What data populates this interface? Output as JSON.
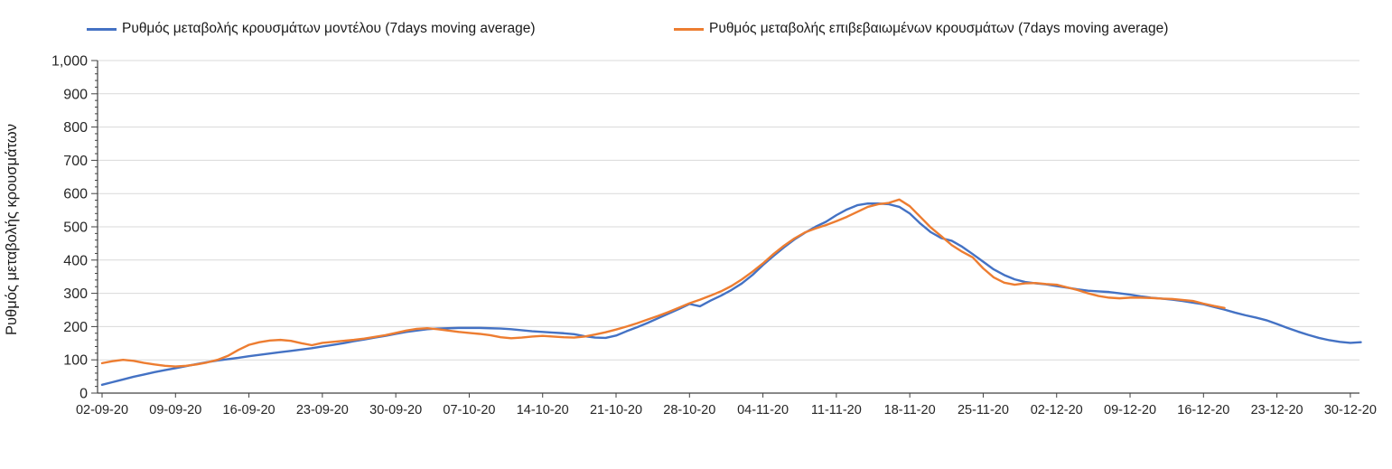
{
  "legend": {
    "items": [
      {
        "label": "Ρυθμός μεταβολής κρουσμάτων μοντέλου (7days moving average)",
        "color": "#4472C4"
      },
      {
        "label": "Ρυθμός μεταβολής επιβεβαιωμένων κρουσμάτων (7days moving average)",
        "color": "#ED7D31"
      }
    ]
  },
  "chart_data": {
    "type": "line",
    "title": "",
    "xlabel": "",
    "ylabel": "Ρυθμός μεταβολής κρουσμάτων",
    "ylim": [
      0,
      1000
    ],
    "y_tick_step": 100,
    "y_minor_tick_step": 20,
    "y_tick_labels": [
      "0",
      "100",
      "200",
      "300",
      "400",
      "500",
      "600",
      "700",
      "800",
      "900",
      "1,000"
    ],
    "grid": "horizontal",
    "gridline_color": "#D9D9D9",
    "axis_color": "#404040",
    "tick_label_color": "#262626",
    "x_tick_labels": [
      "02-09-20",
      "09-09-20",
      "16-09-20",
      "23-09-20",
      "30-09-20",
      "07-10-20",
      "14-10-20",
      "21-10-20",
      "28-10-20",
      "04-11-20",
      "11-11-20",
      "18-11-20",
      "25-11-20",
      "02-12-20",
      "09-12-20",
      "16-12-20",
      "23-12-20",
      "30-12-20"
    ],
    "x_tick_interval_days": 7,
    "legend_position": "top",
    "series": [
      {
        "name": "Ρυθμός μεταβολής κρουσμάτων μοντέλου (7days moving average)",
        "color": "#4472C4",
        "start_day": 0,
        "values": [
          25,
          33,
          41,
          49,
          56,
          63,
          69,
          75,
          81,
          87,
          93,
          98,
          102,
          106,
          111,
          115,
          119,
          123,
          127,
          131,
          135,
          140,
          145,
          150,
          156,
          161,
          167,
          172,
          178,
          184,
          188,
          192,
          194,
          195,
          196,
          196,
          196,
          195,
          194,
          192,
          189,
          186,
          184,
          182,
          180,
          177,
          171,
          167,
          166,
          173,
          186,
          198,
          211,
          225,
          239,
          253,
          268,
          261,
          278,
          293,
          310,
          330,
          355,
          385,
          412,
          438,
          462,
          482,
          500,
          515,
          535,
          552,
          565,
          570,
          570,
          568,
          560,
          540,
          510,
          484,
          466,
          458,
          440,
          418,
          395,
          372,
          355,
          342,
          334,
          330,
          327,
          322,
          317,
          312,
          308,
          306,
          304,
          300,
          296,
          291,
          287,
          284,
          281,
          277,
          272,
          267,
          259,
          251,
          242,
          234,
          227,
          219,
          208,
          196,
          185,
          175,
          166,
          159,
          154,
          151,
          153
        ]
      },
      {
        "name": "Ρυθμός μεταβολής επιβεβαιωμένων κρουσμάτων (7days moving average)",
        "color": "#ED7D31",
        "start_day": 0,
        "values": [
          90,
          96,
          100,
          97,
          91,
          86,
          82,
          80,
          82,
          86,
          92,
          100,
          112,
          130,
          145,
          153,
          158,
          160,
          157,
          150,
          144,
          151,
          154,
          157,
          160,
          164,
          169,
          174,
          181,
          188,
          193,
          195,
          192,
          188,
          184,
          181,
          178,
          174,
          168,
          165,
          167,
          170,
          172,
          170,
          168,
          167,
          170,
          176,
          183,
          191,
          200,
          210,
          221,
          232,
          244,
          257,
          270,
          281,
          293,
          306,
          322,
          342,
          365,
          390,
          418,
          443,
          465,
          483,
          495,
          505,
          517,
          530,
          545,
          560,
          568,
          572,
          582,
          562,
          530,
          498,
          472,
          445,
          425,
          408,
          375,
          348,
          332,
          326,
          330,
          331,
          328,
          326,
          318,
          310,
          300,
          292,
          287,
          285,
          287,
          287,
          286,
          284,
          283,
          280,
          277,
          269,
          262,
          256
        ]
      }
    ]
  }
}
